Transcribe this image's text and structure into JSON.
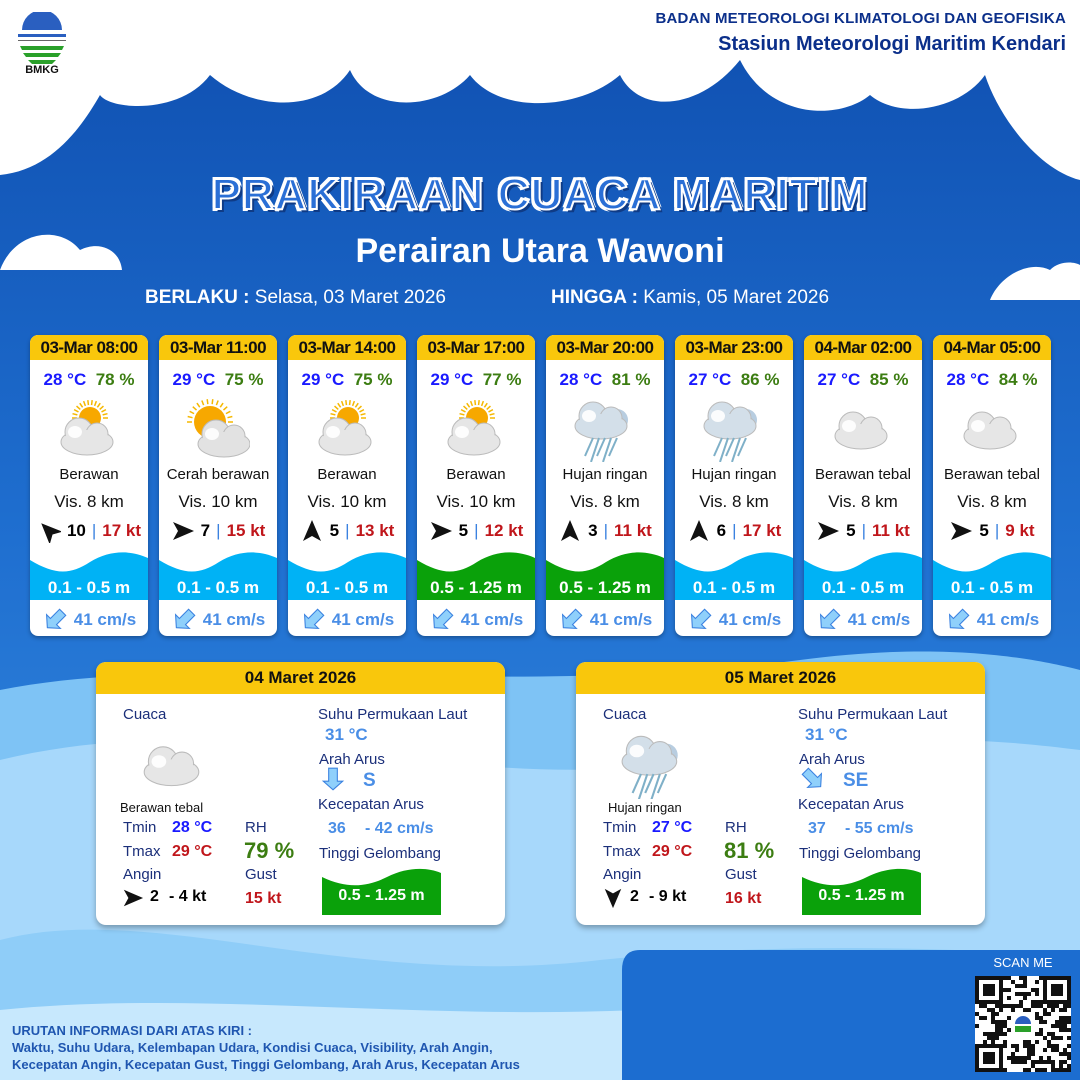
{
  "header": {
    "logo_text": "BMKG",
    "org": "BADAN METEOROLOGI KLIMATOLOGI DAN GEOFISIKA",
    "station": "Stasiun Meteorologi Maritim Kendari"
  },
  "title": "PRAKIRAAN CUACA MARITIM",
  "area": "Perairan Utara Wawoni",
  "validity": {
    "from_label": "BERLAKU :",
    "from": "Selasa, 03 Maret 2026",
    "to_label": "HINGGA :",
    "to": "Kamis, 05 Maret 2026"
  },
  "colors": {
    "header_yellow": "#f9c70c",
    "wave_low": "#00b2f5",
    "wave_mid": "#0aa10a",
    "temp": "#1a1aff",
    "humidity": "#3c7d12",
    "gust": "#c0161b"
  },
  "forecasts": [
    {
      "time": "03-Mar 08:00",
      "temp": "28 °C",
      "rh": "78 %",
      "icon": "partly-cloudy",
      "condition": "Berawan",
      "vis": "Vis. 8 km",
      "wind_dir": "NW",
      "wind": "10",
      "gust": "17 kt",
      "wave": "0.5",
      "wave_label": "0.1 - 0.5 m",
      "wave_level": "low",
      "current_dir": "SW",
      "current": "41 cm/s"
    },
    {
      "time": "03-Mar 11:00",
      "temp": "29 °C",
      "rh": "75 %",
      "icon": "sun-cloud",
      "condition": "Cerah berawan",
      "vis": "Vis. 10 km",
      "wind_dir": "E",
      "wind": "7",
      "gust": "15 kt",
      "wave_label": "0.1 - 0.5 m",
      "wave_level": "low",
      "current_dir": "SW",
      "current": "41 cm/s"
    },
    {
      "time": "03-Mar 14:00",
      "temp": "29 °C",
      "rh": "75 %",
      "icon": "partly-cloudy",
      "condition": "Berawan",
      "vis": "Vis. 10 km",
      "wind_dir": "N",
      "wind": "5",
      "gust": "13 kt",
      "wave_label": "0.1 - 0.5 m",
      "wave_level": "low",
      "current_dir": "SW",
      "current": "41 cm/s"
    },
    {
      "time": "03-Mar 17:00",
      "temp": "29 °C",
      "rh": "77 %",
      "icon": "partly-cloudy",
      "condition": "Berawan",
      "vis": "Vis.  10 km",
      "wind_dir": "E",
      "wind": "5",
      "gust": "12 kt",
      "wave_label": "0.5 - 1.25 m",
      "wave_level": "mid",
      "current_dir": "SW",
      "current": "41 cm/s"
    },
    {
      "time": "03-Mar 20:00",
      "temp": "28 °C",
      "rh": "81 %",
      "icon": "rain",
      "condition": "Hujan ringan",
      "vis": "Vis.  8 km",
      "wind_dir": "N",
      "wind": "3",
      "gust": "11 kt",
      "wave_label": "0.5 - 1.25 m",
      "wave_level": "mid",
      "current_dir": "SW",
      "current": "41 cm/s"
    },
    {
      "time": "03-Mar 23:00",
      "temp": "27 °C",
      "rh": "86 %",
      "icon": "rain",
      "condition": "Hujan ringan",
      "vis": "Vis.  8 km",
      "wind_dir": "N",
      "wind": "6",
      "gust": "17 kt",
      "wave_label": "0.1 - 0.5 m",
      "wave_level": "low",
      "current_dir": "SW",
      "current": "41 cm/s"
    },
    {
      "time": "04-Mar 02:00",
      "temp": "27 °C",
      "rh": "85 %",
      "icon": "cloud",
      "condition": "Berawan tebal",
      "vis": "Vis.  8 km",
      "wind_dir": "E",
      "wind": "5",
      "gust": "11 kt",
      "wave_label": "0.1 - 0.5 m",
      "wave_level": "low",
      "current_dir": "SW",
      "current": "41 cm/s"
    },
    {
      "time": "04-Mar 05:00",
      "temp": "28 °C",
      "rh": "84 %",
      "icon": "cloud",
      "condition": "Berawan tebal",
      "vis": "Vis.  8 km",
      "wind_dir": "E",
      "wind": "5",
      "gust": "9 kt",
      "wave_label": "0.1 - 0.5 m",
      "wave_level": "low",
      "current_dir": "SW",
      "current": "41 cm/s"
    }
  ],
  "labels": {
    "cuaca": "Cuaca",
    "sst": "Suhu Permukaan Laut",
    "arah_arus": "Arah Arus",
    "kec_arus": "Kecepatan Arus",
    "tinggi": "Tinggi Gelombang",
    "tmin": "Tmin",
    "tmax": "Tmax",
    "angin": "Angin",
    "rh": "RH",
    "gust": "Gust"
  },
  "daily": [
    {
      "date": "04 Maret 2026",
      "icon": "cloud",
      "condition": "Berawan tebal",
      "tmin": "28 °C",
      "tmax": "29 °C",
      "rh": "79 %",
      "wind_dir": "E",
      "wind_min": "2",
      "wind_max": "- 4 kt",
      "gust": "15 kt",
      "sst": "31 °C",
      "current_dir": "S",
      "current_dir_label": "S",
      "current_min": "36",
      "current_max": "- 42 cm/s",
      "wave": "0.5 - 1.25 m"
    },
    {
      "date": "05 Maret 2026",
      "icon": "rain",
      "condition": "Hujan ringan",
      "tmin": "27 °C",
      "tmax": "29 °C",
      "rh": "81 %",
      "wind_dir": "S",
      "wind_min": "2",
      "wind_max": "- 9 kt",
      "gust": "16 kt",
      "sst": "31 °C",
      "current_dir": "SE",
      "current_dir_label": "SE",
      "current_min": "37",
      "current_max": "- 55 cm/s",
      "wave": "0.5 - 1.25 m"
    }
  ],
  "qr": {
    "label": "SCAN ME"
  },
  "footer": {
    "heading": "URUTAN INFORMASI DARI ATAS KIRI :",
    "line1": "Waktu, Suhu Udara, Kelembapan Udara, Kondisi Cuaca, Visibility, Arah Angin,",
    "line2": "Kecepatan Angin, Kecepatan Gust, Tinggi Gelombang, Arah Arus, Kecepatan Arus"
  }
}
